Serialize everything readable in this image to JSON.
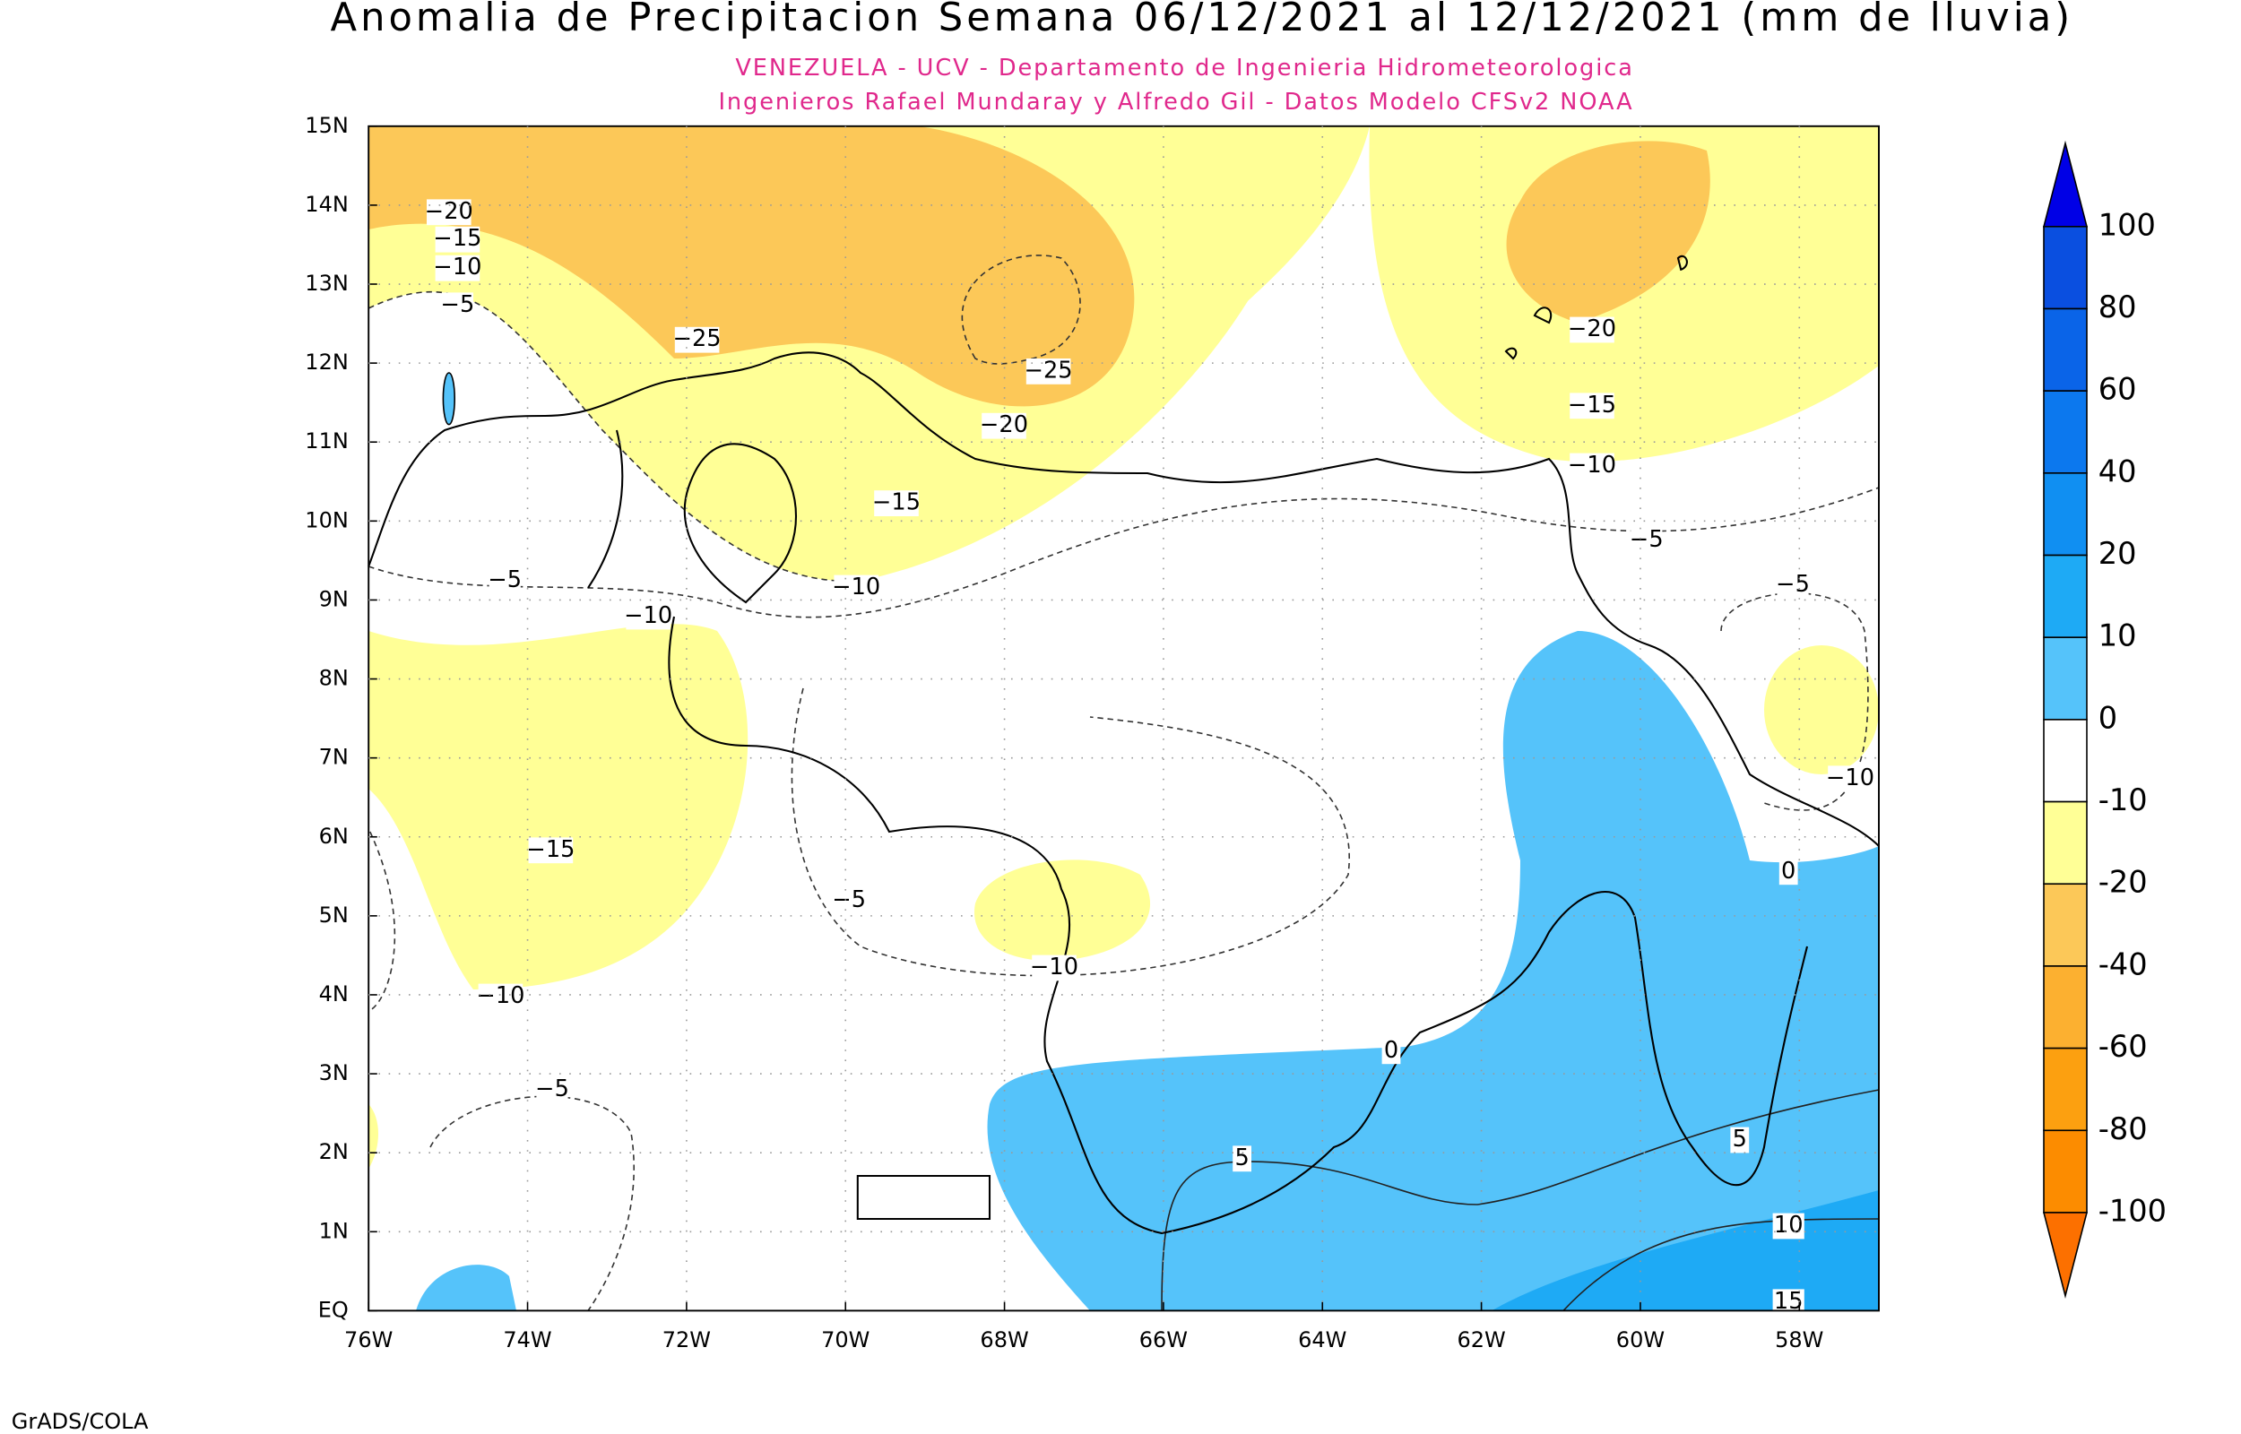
{
  "title": "Anomalia de Precipitacion Semana 06/12/2021 al 12/12/2021 (mm de lluvia)",
  "subtitle": [
    "VENEZUELA - UCV - Departamento de Ingenieria Hidrometeorologica",
    "Ingenieros Rafael Mundaray y Alfredo Gil - Datos Modelo CFSv2 NOAA"
  ],
  "map": {
    "lat_labels": [
      "EQ",
      "1N",
      "2N",
      "3N",
      "4N",
      "5N",
      "6N",
      "7N",
      "8N",
      "9N",
      "10N",
      "11N",
      "12N",
      "13N",
      "14N",
      "15N"
    ],
    "lon_labels": [
      "76W",
      "74W",
      "72W",
      "70W",
      "68W",
      "66W",
      "64W",
      "62W",
      "60W",
      "58W"
    ],
    "contour_labels": [
      "−20",
      "−15",
      "−10",
      "−5",
      "−25",
      "−25",
      "−20",
      "−15",
      "−10",
      "−5",
      "−10",
      "−15",
      "−10",
      "−5",
      "−5",
      "−10",
      "0",
      "5",
      "5",
      "10",
      "15",
      "−20",
      "−15",
      "−10",
      "−5",
      "−5",
      "−10",
      "0"
    ]
  },
  "colorbar": {
    "levels": [
      100,
      80,
      60,
      40,
      20,
      10,
      0,
      -10,
      -20,
      -40,
      -60,
      -80,
      -100
    ],
    "colors": [
      "#0000e6",
      "#0a4fe0",
      "#0a64e8",
      "#0c78ee",
      "#108ff2",
      "#1eaaf5",
      "#55c3fa",
      "#ffffff",
      "#ffff96",
      "#fcc858",
      "#fcb030",
      "#fca010",
      "#fc8c00",
      "#fc7000"
    ]
  },
  "credit": "GrADS/COLA"
}
